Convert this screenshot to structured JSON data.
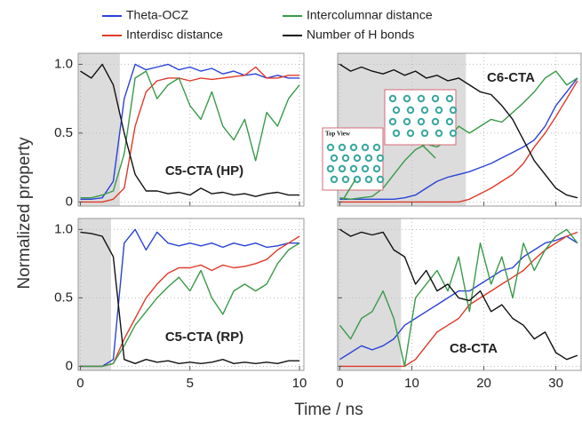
{
  "xlabel": "Time / ns",
  "ylabel": "Normalized property",
  "chart_data": [
    {
      "type": "line",
      "label": "C5-CTA (HP)",
      "xlim": [
        -0.1,
        10.2
      ],
      "ylim": [
        -0.03,
        1.08
      ],
      "xticks": [
        0,
        5,
        10
      ],
      "yticks": [
        0,
        0.5,
        {
          "value": 1,
          "label": "1.0"
        }
      ],
      "xticklabels": false,
      "yticklabels": true,
      "grid": true,
      "shaded_xrange": [
        0,
        1.8
      ],
      "x": [
        0,
        0.5,
        1,
        1.5,
        2,
        2.5,
        3,
        3.5,
        4,
        4.5,
        5,
        5.5,
        6,
        6.5,
        7,
        7.5,
        8,
        8.5,
        9,
        9.5,
        10
      ],
      "series": [
        {
          "name": "Theta-OCZ",
          "color": "#2a43d6",
          "values": [
            0.02,
            0.02,
            0.03,
            0.15,
            0.75,
            1.0,
            0.96,
            0.98,
            1.0,
            0.96,
            0.98,
            0.95,
            0.97,
            0.93,
            0.95,
            0.92,
            0.93,
            0.9,
            0.92,
            0.9,
            0.9
          ]
        },
        {
          "name": "Interdisc distance",
          "color": "#e03a2a",
          "values": [
            0,
            0,
            0,
            0.02,
            0.1,
            0.55,
            0.8,
            0.88,
            0.9,
            0.9,
            0.88,
            0.9,
            0.89,
            0.9,
            0.91,
            0.92,
            0.98,
            0.9,
            0.9,
            0.92,
            0.92
          ]
        },
        {
          "name": "Intercolumnar distance",
          "color": "#3a9a4a",
          "values": [
            0.03,
            0.03,
            0.05,
            0.08,
            0.35,
            0.9,
            0.95,
            0.75,
            0.85,
            0.9,
            0.7,
            0.6,
            0.8,
            0.55,
            0.45,
            0.6,
            0.3,
            0.65,
            0.55,
            0.75,
            0.85
          ]
        },
        {
          "name": "Number of H bonds",
          "color": "#111111",
          "values": [
            0.95,
            0.9,
            1.0,
            0.85,
            0.5,
            0.2,
            0.08,
            0.08,
            0.06,
            0.07,
            0.05,
            0.1,
            0.06,
            0.07,
            0.05,
            0.06,
            0.04,
            0.06,
            0.07,
            0.05,
            0.05
          ]
        }
      ]
    },
    {
      "type": "line",
      "label": "C6-CTA",
      "inset_label": "Top View",
      "xlim": [
        -0.3,
        33.5
      ],
      "ylim": [
        -0.03,
        1.08
      ],
      "xticks": [
        0,
        10,
        20,
        30
      ],
      "yticks": [
        0,
        0.5,
        1
      ],
      "xticklabels": false,
      "yticklabels": false,
      "grid": true,
      "shaded_xrange": [
        0,
        17.5
      ],
      "x": [
        0,
        1.5,
        3,
        4.5,
        6,
        7.5,
        9,
        10.5,
        12,
        13.5,
        15,
        16.5,
        18,
        19.5,
        21,
        22.5,
        24,
        25.5,
        27,
        28.5,
        30,
        31.5,
        33
      ],
      "series": [
        {
          "name": "Theta-OCZ",
          "color": "#2a43d6",
          "values": [
            0.02,
            0.02,
            0.02,
            0.02,
            0.02,
            0.02,
            0.03,
            0.05,
            0.1,
            0.15,
            0.18,
            0.2,
            0.22,
            0.25,
            0.28,
            0.32,
            0.36,
            0.4,
            0.45,
            0.55,
            0.7,
            0.8,
            0.9
          ]
        },
        {
          "name": "Interdisc distance",
          "color": "#e03a2a",
          "values": [
            0,
            0,
            0,
            0,
            0,
            0,
            0,
            0,
            0,
            0,
            0,
            0,
            0.02,
            0.06,
            0.1,
            0.15,
            0.2,
            0.28,
            0.4,
            0.5,
            0.62,
            0.75,
            0.88
          ]
        },
        {
          "name": "Intercolumnar distance",
          "color": "#3a9a4a",
          "values": [
            0.03,
            0.02,
            0.03,
            0.04,
            0.1,
            0.2,
            0.3,
            0.38,
            0.42,
            0.4,
            0.45,
            0.55,
            0.5,
            0.55,
            0.6,
            0.58,
            0.65,
            0.72,
            0.8,
            0.9,
            0.95,
            0.85,
            0.9
          ]
        },
        {
          "name": "Number of H bonds",
          "color": "#111111",
          "values": [
            1.0,
            0.95,
            0.98,
            0.95,
            0.93,
            0.96,
            0.92,
            0.95,
            0.9,
            0.92,
            0.88,
            0.9,
            0.85,
            0.8,
            0.78,
            0.7,
            0.6,
            0.45,
            0.3,
            0.2,
            0.1,
            0.05,
            0.03
          ]
        }
      ]
    },
    {
      "type": "line",
      "label": "C5-CTA (RP)",
      "xlim": [
        -0.1,
        10.2
      ],
      "ylim": [
        -0.03,
        1.08
      ],
      "xticks": [
        0,
        5,
        10
      ],
      "yticks": [
        0,
        0.5,
        {
          "value": 1,
          "label": "1.0"
        }
      ],
      "xticklabels": true,
      "yticklabels": true,
      "grid": true,
      "shaded_xrange": [
        0,
        1.4
      ],
      "x": [
        0,
        0.5,
        1,
        1.5,
        2,
        2.5,
        3,
        3.5,
        4,
        4.5,
        5,
        5.5,
        6,
        6.5,
        7,
        7.5,
        8,
        8.5,
        9,
        9.5,
        10
      ],
      "series": [
        {
          "name": "Theta-OCZ",
          "color": "#2a43d6",
          "values": [
            0,
            0,
            0,
            0.05,
            0.9,
            1.0,
            0.85,
            0.98,
            0.9,
            0.88,
            0.9,
            0.88,
            0.9,
            0.87,
            0.9,
            0.88,
            0.9,
            0.87,
            0.88,
            0.9,
            0.9
          ]
        },
        {
          "name": "Interdisc distance",
          "color": "#e03a2a",
          "values": [
            0,
            0,
            0,
            0.02,
            0.2,
            0.35,
            0.5,
            0.6,
            0.68,
            0.72,
            0.72,
            0.74,
            0.7,
            0.74,
            0.72,
            0.73,
            0.75,
            0.78,
            0.85,
            0.9,
            0.95
          ]
        },
        {
          "name": "Intercolumnar distance",
          "color": "#3a9a4a",
          "values": [
            0,
            0,
            0,
            0.02,
            0.15,
            0.3,
            0.4,
            0.5,
            0.58,
            0.65,
            0.55,
            0.7,
            0.5,
            0.38,
            0.55,
            0.6,
            0.55,
            0.6,
            0.75,
            0.85,
            0.9
          ]
        },
        {
          "name": "Number of H bonds",
          "color": "#111111",
          "values": [
            0.98,
            0.97,
            0.95,
            0.8,
            0.05,
            0.02,
            0.05,
            0.03,
            0.04,
            0.02,
            0.03,
            0.02,
            0.03,
            0.05,
            0.02,
            0.03,
            0.02,
            0.03,
            0.02,
            0.04,
            0.04
          ]
        }
      ]
    },
    {
      "type": "line",
      "label": "C8-CTA",
      "xlim": [
        -0.3,
        33.5
      ],
      "ylim": [
        -0.03,
        1.08
      ],
      "xticks": [
        0,
        10,
        20,
        30
      ],
      "yticks": [
        0,
        0.5,
        1
      ],
      "xticklabels": true,
      "yticklabels": false,
      "grid": true,
      "shaded_xrange": [
        0,
        8.5
      ],
      "x": [
        0,
        1.5,
        3,
        4.5,
        6,
        7.5,
        9,
        10.5,
        12,
        13.5,
        15,
        16.5,
        18,
        19.5,
        21,
        22.5,
        24,
        25.5,
        27,
        28.5,
        30,
        31.5,
        33
      ],
      "series": [
        {
          "name": "Theta-OCZ",
          "color": "#2a43d6",
          "values": [
            0.05,
            0.1,
            0.15,
            0.12,
            0.15,
            0.2,
            0.3,
            0.35,
            0.4,
            0.45,
            0.5,
            0.55,
            0.55,
            0.6,
            0.65,
            0.7,
            0.72,
            0.8,
            0.85,
            0.9,
            0.92,
            0.95,
            0.9
          ]
        },
        {
          "name": "Interdisc distance",
          "color": "#e03a2a",
          "values": [
            0,
            0,
            0,
            0,
            0,
            0,
            0,
            0.05,
            0.15,
            0.25,
            0.3,
            0.35,
            0.45,
            0.5,
            0.55,
            0.6,
            0.65,
            0.7,
            0.78,
            0.85,
            0.9,
            0.95,
            0.98
          ]
        },
        {
          "name": "Intercolumnar distance",
          "color": "#3a9a4a",
          "values": [
            0.3,
            0.2,
            0.35,
            0.4,
            0.55,
            0.35,
            0.0,
            0.5,
            0.6,
            0.7,
            0.55,
            0.8,
            0.4,
            0.9,
            0.6,
            0.8,
            0.5,
            0.9,
            0.7,
            0.85,
            0.95,
            1.0,
            0.9
          ]
        },
        {
          "name": "Number of H bonds",
          "color": "#111111",
          "values": [
            1.0,
            0.95,
            0.98,
            0.96,
            0.98,
            0.85,
            0.8,
            0.6,
            0.7,
            0.55,
            0.6,
            0.5,
            0.48,
            0.55,
            0.4,
            0.45,
            0.35,
            0.3,
            0.2,
            0.25,
            0.1,
            0.05,
            0.08
          ]
        }
      ]
    }
  ]
}
